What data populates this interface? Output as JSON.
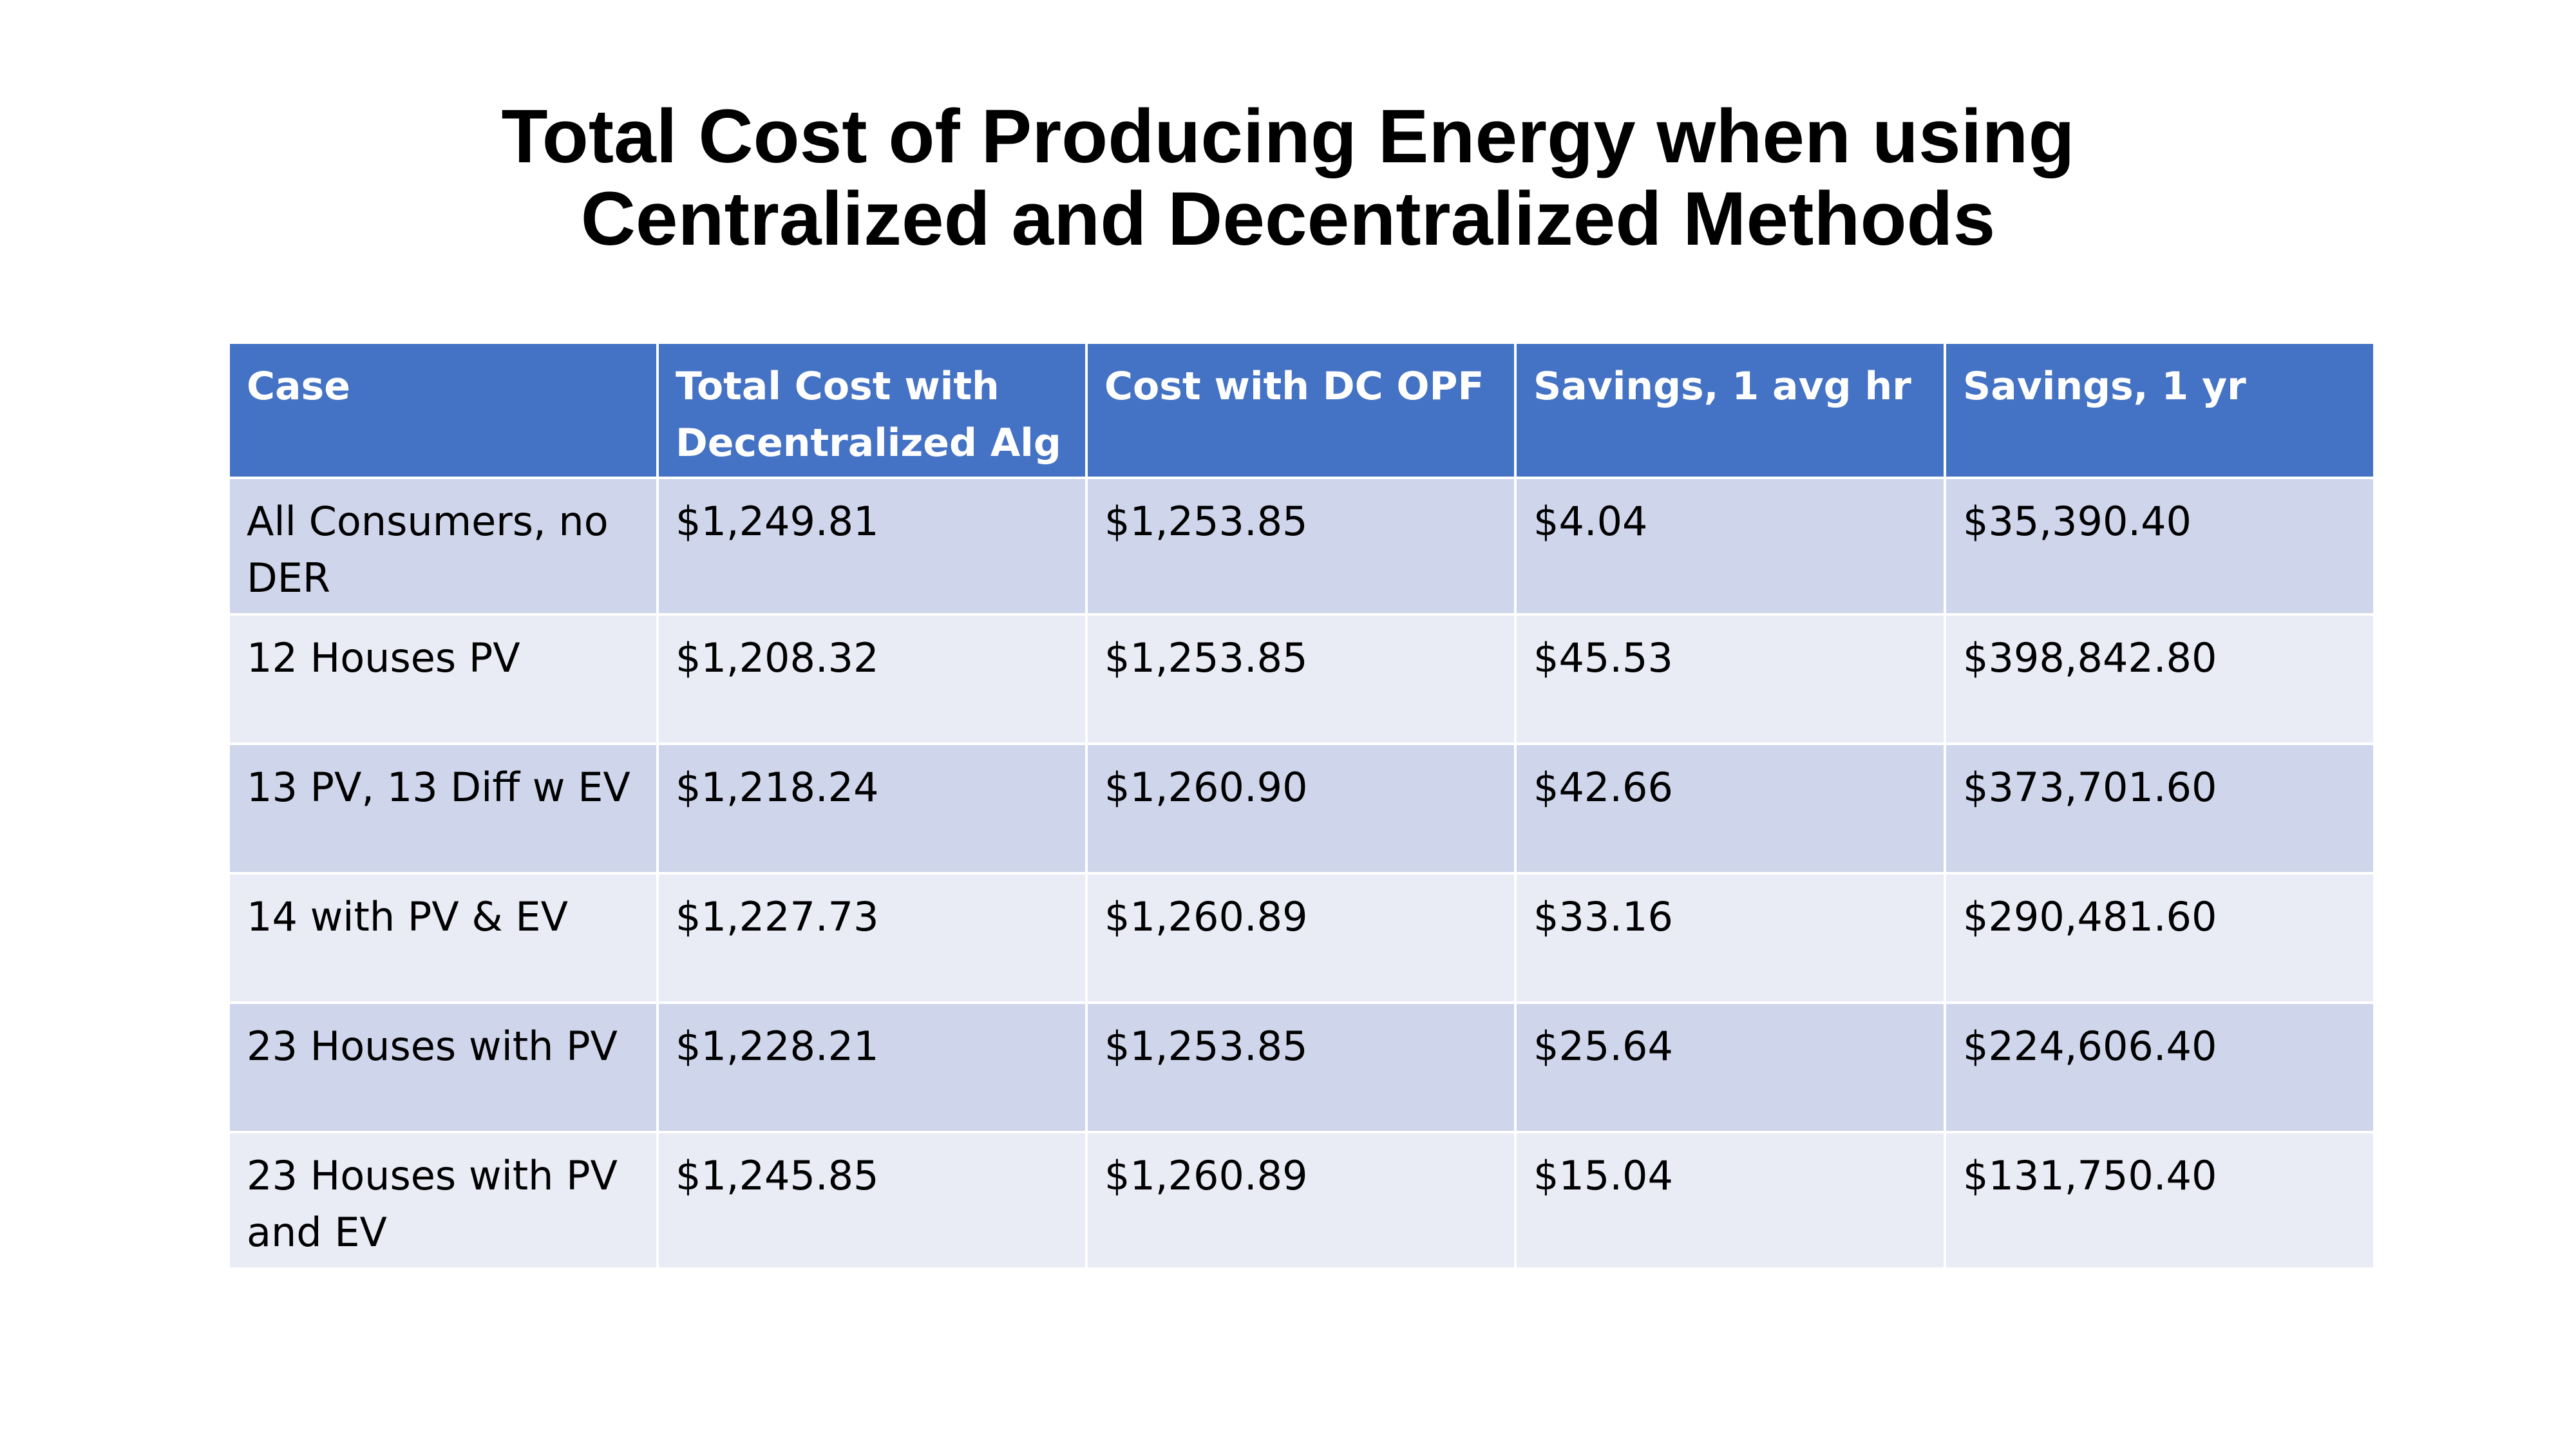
{
  "title": {
    "line1": "Total Cost of Producing Energy when using",
    "line2": "Centralized and Decentralized Methods"
  },
  "table": {
    "headers": [
      "Case",
      "Total Cost with Decentralized Alg",
      "Cost with DC OPF",
      "Savings, 1 avg hr",
      "Savings, 1 yr"
    ],
    "rows": [
      [
        "All Consumers, no DER",
        "$1,249.81",
        "$1,253.85",
        "$4.04",
        "$35,390.40"
      ],
      [
        "12 Houses PV",
        "$1,208.32",
        "$1,253.85",
        "$45.53",
        "$398,842.80"
      ],
      [
        "13 PV, 13 Diff w EV",
        "$1,218.24",
        "$1,260.90",
        "$42.66",
        "$373,701.60"
      ],
      [
        "14 with PV & EV",
        "$1,227.73",
        "$1,260.89",
        "$33.16",
        "$290,481.60"
      ],
      [
        "23 Houses with PV",
        "$1,228.21",
        "$1,253.85",
        "$25.64",
        "$224,606.40"
      ],
      [
        "23 Houses with PV and EV",
        "$1,245.85",
        "$1,260.89",
        "$15.04",
        "$131,750.40"
      ]
    ],
    "header_color": "#4472c4",
    "row_color_odd": "#cfd5ea",
    "row_color_even": "#e9ebf5"
  }
}
